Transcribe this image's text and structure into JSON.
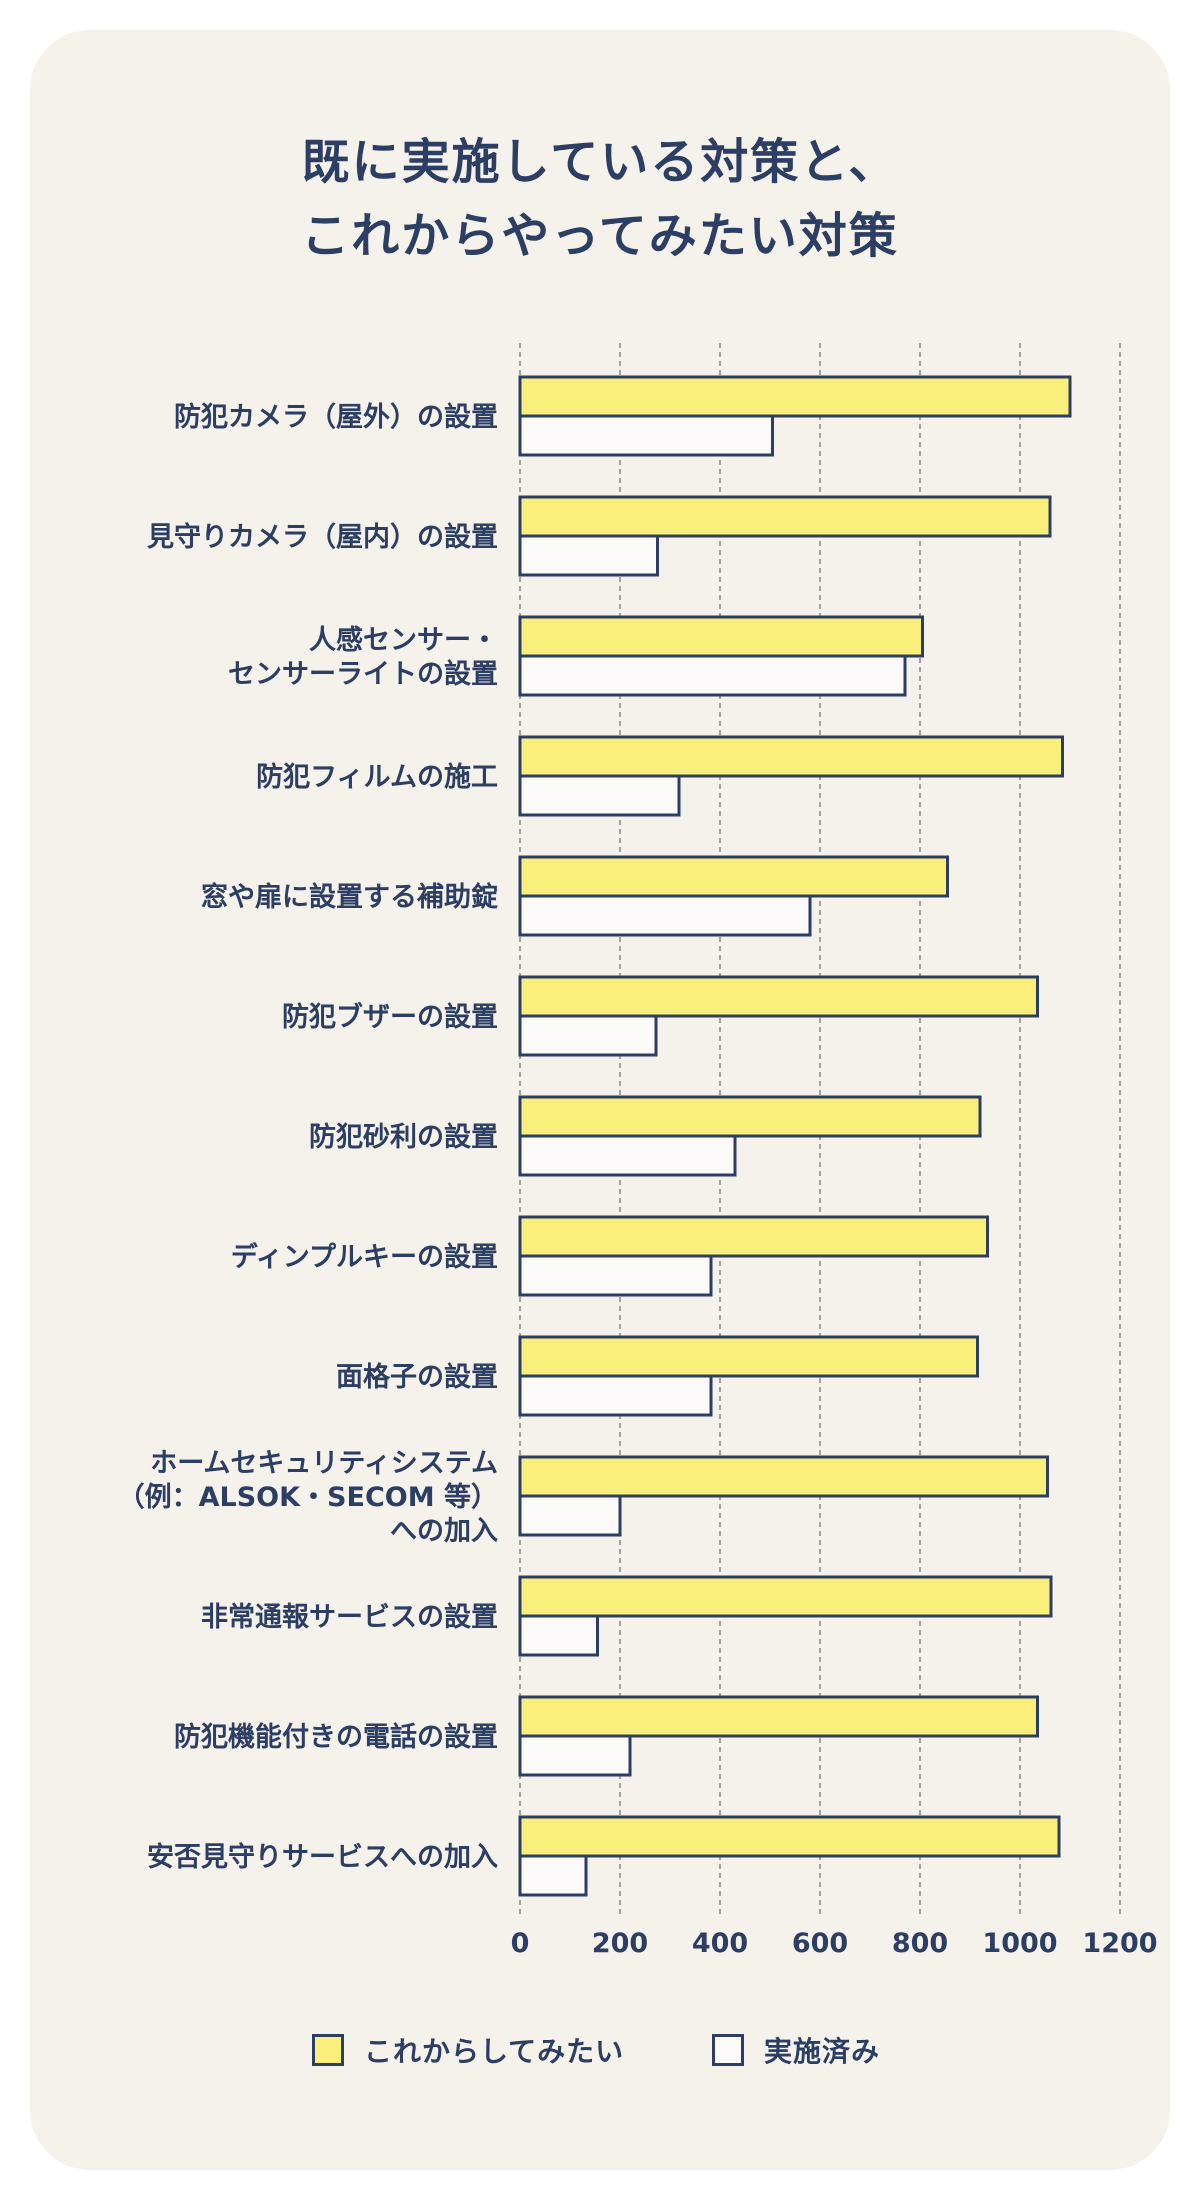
{
  "title": {
    "line1": "既に実施している対策と、",
    "line2": "これからやってみたい対策"
  },
  "colors": {
    "background": "#f5f2ec",
    "navy": "#2c3e63",
    "yellow": "#faef7a",
    "white": "#fbfaf8"
  },
  "chart_data": {
    "type": "bar",
    "orientation": "horizontal",
    "categories": [
      [
        "防犯カメラ（屋外）の設置"
      ],
      [
        "見守りカメラ（屋内）の設置"
      ],
      [
        "人感センサー・",
        "センサーライトの設置"
      ],
      [
        "防犯フィルムの施工"
      ],
      [
        "窓や扉に設置する補助錠"
      ],
      [
        "防犯ブザーの設置"
      ],
      [
        "防犯砂利の設置"
      ],
      [
        "ディンプルキーの設置"
      ],
      [
        "面格子の設置"
      ],
      [
        "ホームセキュリティシステム",
        "（例：ALSOK・SECOM 等）",
        "への加入"
      ],
      [
        "非常通報サービスの設置"
      ],
      [
        "防犯機能付きの電話の設置"
      ],
      [
        "安否見守りサービスへの加入"
      ]
    ],
    "series": [
      {
        "name": "これからしてみたい",
        "color": "#faef7a",
        "values": [
          1100,
          1060,
          805,
          1085,
          855,
          1035,
          920,
          935,
          915,
          1055,
          1062,
          1035,
          1078
        ]
      },
      {
        "name": "実施済み",
        "color": "#fbfaf8",
        "values": [
          505,
          275,
          770,
          318,
          580,
          272,
          430,
          382,
          382,
          200,
          155,
          220,
          132
        ]
      }
    ],
    "xticks": [
      "0",
      "200",
      "400",
      "600",
      "800",
      "1000",
      "1200"
    ],
    "xlim": [
      0,
      1200
    ],
    "grid": true,
    "legend_position": "bottom"
  }
}
